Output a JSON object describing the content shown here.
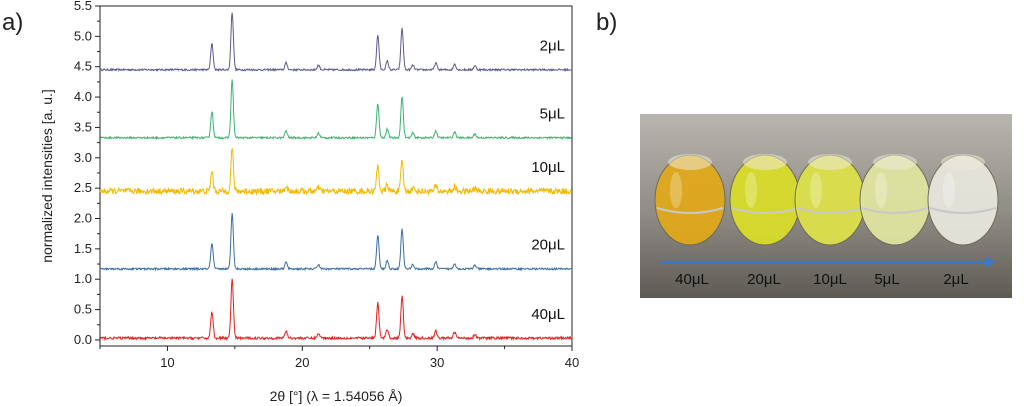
{
  "panels": {
    "a": "a)",
    "b": "b)"
  },
  "chart_data": {
    "type": "line",
    "title": "",
    "xlabel": "2θ [°] (λ = 1.54056 Å)",
    "ylabel": "normalized intensities [a. u.]",
    "xlim": [
      5,
      40
    ],
    "ylim": [
      -0.1,
      5.5
    ],
    "xticks": [
      10,
      20,
      30,
      40
    ],
    "yticks": [
      0.0,
      0.5,
      1.0,
      1.5,
      2.0,
      2.5,
      3.0,
      3.5,
      4.0,
      4.5,
      5.0,
      5.5
    ],
    "grid": false,
    "peaks": [
      {
        "x": 13.3,
        "rel": 0.45
      },
      {
        "x": 14.8,
        "rel": 1.0
      },
      {
        "x": 18.8,
        "rel": 0.12
      },
      {
        "x": 21.2,
        "rel": 0.08
      },
      {
        "x": 25.6,
        "rel": 0.6
      },
      {
        "x": 26.3,
        "rel": 0.15
      },
      {
        "x": 27.4,
        "rel": 0.72
      },
      {
        "x": 28.2,
        "rel": 0.08
      },
      {
        "x": 29.9,
        "rel": 0.12
      },
      {
        "x": 31.3,
        "rel": 0.1
      },
      {
        "x": 32.8,
        "rel": 0.07
      }
    ],
    "series": [
      {
        "name": "2μL",
        "color": "#5b5b8f",
        "baseline": 4.45,
        "peak_height": 0.95,
        "noise": 0.015
      },
      {
        "name": "5μL",
        "color": "#3cb371",
        "baseline": 3.33,
        "peak_height": 0.95,
        "noise": 0.015
      },
      {
        "name": "10μL",
        "color": "#f5b800",
        "baseline": 2.45,
        "peak_height": 0.7,
        "noise": 0.05
      },
      {
        "name": "20μL",
        "color": "#3a6ea5",
        "baseline": 1.17,
        "peak_height": 0.92,
        "noise": 0.015
      },
      {
        "name": "40μL",
        "color": "#e02020",
        "baseline": 0.03,
        "peak_height": 0.97,
        "noise": 0.02
      }
    ]
  },
  "photo": {
    "vials": [
      {
        "label": "40μL",
        "color": "#e0a91b"
      },
      {
        "label": "20μL",
        "color": "#d8dc2a"
      },
      {
        "label": "10μL",
        "color": "#dce04a"
      },
      {
        "label": "5μL",
        "color": "#dfe4a0"
      },
      {
        "label": "2μL",
        "color": "#e6e6dc"
      }
    ],
    "arrow_color": "#3b78c9"
  }
}
